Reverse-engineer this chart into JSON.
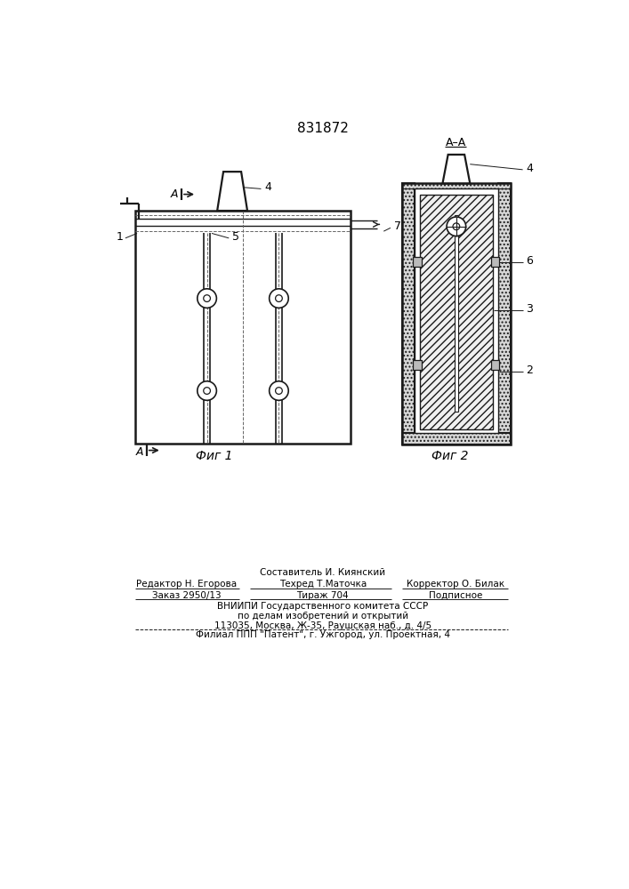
{
  "patent_number": "831872",
  "footer_lines": [
    "Составитель И. Киянский",
    "Редактор Н. Егорова",
    "Техред Т.Маточка",
    "Корректор О. Билак",
    "Заказ 2950/13",
    "Тираж 704",
    "Подписное",
    "ВНИИПИ Государственного комитета СССР",
    "по делам изобретений и открытий",
    "113035, Москва, Ж-35, Раушская наб., д. 4/5",
    "Филиал ППП \"Патент\", г. Ужгород, ул. Проектная, 4"
  ],
  "lc": "#1a1a1a"
}
